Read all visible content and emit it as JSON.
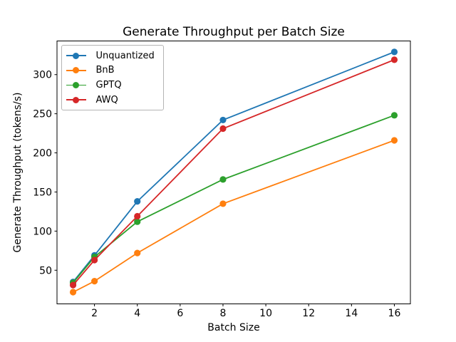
{
  "chart_data": {
    "type": "line",
    "title": "Generate Throughput per Batch Size",
    "xlabel": "Batch Size",
    "ylabel": "Generate Throughput (tokens/s)",
    "x": [
      1,
      2,
      4,
      8,
      16
    ],
    "series": [
      {
        "name": "Unquantized",
        "color": "#1f77b4",
        "values": [
          35,
          69,
          138,
          242,
          329
        ]
      },
      {
        "name": "BnB",
        "color": "#ff7f0e",
        "values": [
          22,
          36,
          72,
          135,
          216
        ]
      },
      {
        "name": "GPTQ",
        "color": "#2ca02c",
        "values": [
          34,
          67,
          112,
          166,
          248
        ]
      },
      {
        "name": "AWQ",
        "color": "#d62728",
        "values": [
          31,
          63,
          119,
          231,
          319
        ]
      }
    ],
    "xticks": [
      2,
      4,
      6,
      8,
      10,
      12,
      14,
      16
    ],
    "yticks": [
      50,
      100,
      150,
      200,
      250,
      300
    ],
    "xlim": [
      0.25,
      16.75
    ],
    "ylim": [
      7,
      343
    ],
    "grid": false,
    "legend_position": "upper left",
    "axis_color": "#000000"
  }
}
